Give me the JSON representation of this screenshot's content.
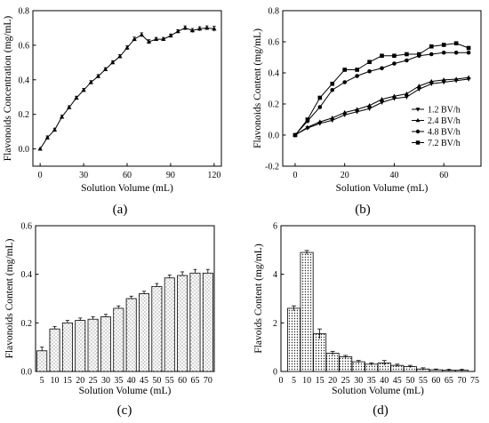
{
  "chart_data": [
    {
      "panel_label": "(a)",
      "type": "line",
      "xlabel": "Solution Volume (mL)",
      "ylabel": "Flavonoids Concentration (mg/mL)",
      "xlim": [
        -5,
        125
      ],
      "ylim": [
        -0.1,
        0.8
      ],
      "xticks": [
        0,
        30,
        60,
        90,
        120
      ],
      "yticks": [
        0.0,
        0.2,
        0.4,
        0.6,
        0.8
      ],
      "marker": "triangle",
      "grid": false,
      "series": [
        {
          "x": [
            0,
            5,
            10,
            15,
            20,
            25,
            30,
            35,
            40,
            45,
            50,
            55,
            60,
            65,
            70,
            75,
            80,
            85,
            90,
            95,
            100,
            105,
            110,
            115,
            120
          ],
          "y": [
            0.0,
            0.065,
            0.11,
            0.185,
            0.24,
            0.295,
            0.34,
            0.385,
            0.42,
            0.46,
            0.5,
            0.535,
            0.585,
            0.635,
            0.66,
            0.62,
            0.635,
            0.635,
            0.655,
            0.68,
            0.7,
            0.685,
            0.695,
            0.7,
            0.695
          ],
          "err": [
            0,
            0.01,
            0.01,
            0.01,
            0.01,
            0.01,
            0.01,
            0.01,
            0.01,
            0.01,
            0.01,
            0.01,
            0.012,
            0.012,
            0.012,
            0.012,
            0.01,
            0.01,
            0.01,
            0.01,
            0.012,
            0.012,
            0.012,
            0.012,
            0.015
          ]
        }
      ]
    },
    {
      "panel_label": "(b)",
      "type": "line",
      "xlabel": "Solution Volume (mL)",
      "ylabel": "Flavonoids Content (mg/mL)",
      "xlim": [
        -5,
        75
      ],
      "ylim": [
        -0.2,
        0.8
      ],
      "xticks": [
        0,
        20,
        40,
        60
      ],
      "yticks": [
        -0.2,
        0.0,
        0.2,
        0.4,
        0.6,
        0.8
      ],
      "legend": "bottom-right",
      "grid": false,
      "x": [
        0,
        5,
        10,
        15,
        20,
        25,
        30,
        35,
        40,
        45,
        50,
        55,
        60,
        65,
        70
      ],
      "series": [
        {
          "name": "1.2 BV/h",
          "marker": "triangle-down",
          "y": [
            0.0,
            0.045,
            0.075,
            0.095,
            0.13,
            0.15,
            0.17,
            0.21,
            0.235,
            0.245,
            0.295,
            0.33,
            0.34,
            0.35,
            0.36
          ]
        },
        {
          "name": "2.4 BV/h",
          "marker": "triangle-up",
          "y": [
            0.0,
            0.05,
            0.085,
            0.11,
            0.145,
            0.165,
            0.19,
            0.23,
            0.25,
            0.265,
            0.315,
            0.345,
            0.355,
            0.36,
            0.37
          ]
        },
        {
          "name": "4.8 BV/h",
          "marker": "circle",
          "y": [
            0.0,
            0.09,
            0.18,
            0.29,
            0.34,
            0.38,
            0.41,
            0.43,
            0.46,
            0.48,
            0.51,
            0.52,
            0.53,
            0.53,
            0.53
          ]
        },
        {
          "name": "7.2 BV/h",
          "marker": "square",
          "y": [
            0.0,
            0.1,
            0.24,
            0.33,
            0.42,
            0.42,
            0.47,
            0.51,
            0.51,
            0.52,
            0.52,
            0.57,
            0.58,
            0.59,
            0.56
          ]
        }
      ]
    },
    {
      "panel_label": "(c)",
      "type": "bar",
      "xlabel": "Solution Volume (mL)",
      "ylabel": "Flavonoids Content (mg/mL)",
      "ylim": [
        0,
        0.6
      ],
      "yticks": [
        0.0,
        0.2,
        0.4,
        0.6
      ],
      "categories": [
        "5",
        "10",
        "15",
        "20",
        "25",
        "30",
        "35",
        "40",
        "45",
        "50",
        "55",
        "60",
        "65",
        "70"
      ],
      "values": [
        0.085,
        0.175,
        0.2,
        0.21,
        0.215,
        0.225,
        0.26,
        0.3,
        0.32,
        0.35,
        0.385,
        0.395,
        0.405,
        0.405
      ],
      "err": [
        0.015,
        0.01,
        0.01,
        0.01,
        0.01,
        0.01,
        0.01,
        0.01,
        0.01,
        0.012,
        0.012,
        0.015,
        0.015,
        0.015
      ]
    },
    {
      "panel_label": "(d)",
      "type": "bar",
      "xlabel": "Solution Volume (mL)",
      "ylabel": "Flavoids Content (mg/mL)",
      "xlim": [
        0,
        75
      ],
      "ylim": [
        0,
        6
      ],
      "xticks": [
        0,
        5,
        10,
        15,
        20,
        25,
        30,
        35,
        40,
        45,
        50,
        55,
        60,
        65,
        70,
        75
      ],
      "yticks": [
        0,
        2,
        4,
        6
      ],
      "x": [
        5,
        10,
        15,
        20,
        25,
        30,
        35,
        40,
        45,
        50,
        55,
        60,
        65,
        70
      ],
      "values": [
        2.6,
        4.9,
        1.55,
        0.75,
        0.6,
        0.4,
        0.3,
        0.35,
        0.25,
        0.2,
        0.1,
        0.07,
        0.05,
        0.05
      ],
      "err": [
        0.1,
        0.08,
        0.2,
        0.08,
        0.06,
        0.05,
        0.05,
        0.1,
        0.05,
        0.05,
        0.05,
        0.03,
        0.03,
        0.03
      ]
    }
  ]
}
